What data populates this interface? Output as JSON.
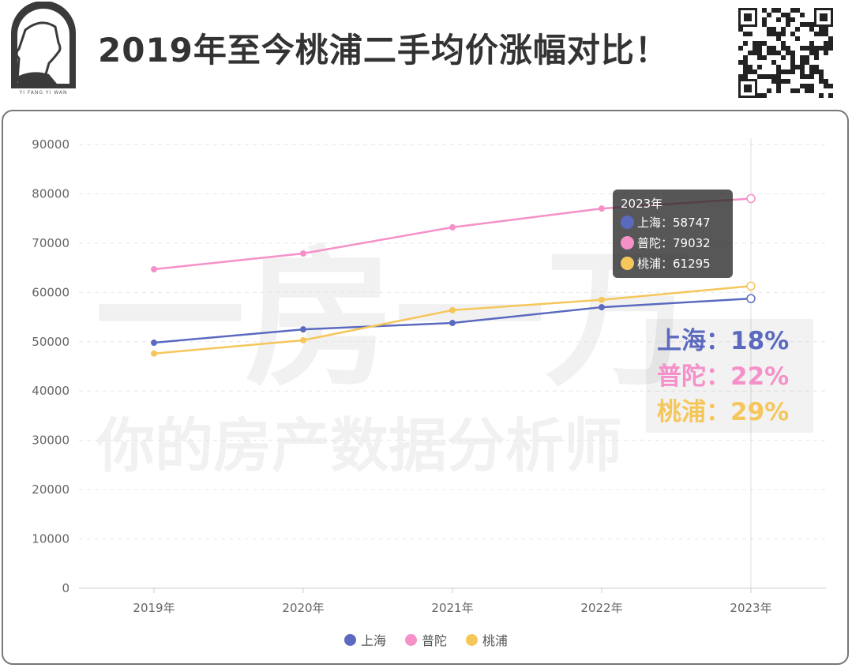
{
  "header": {
    "title": "2019年至今桃浦二手均价涨幅对比！",
    "logo_text": "YI FANG YI WAN"
  },
  "watermark": {
    "line1": "一房一万",
    "line2": "你的房产数据分析师"
  },
  "tooltip": {
    "title": "2023年",
    "rows": [
      {
        "label": "上海：58747",
        "color": "#5b6abf"
      },
      {
        "label": "普陀：79032",
        "color": "#f590c8"
      },
      {
        "label": "桃浦：61295",
        "color": "#f5c65a"
      }
    ]
  },
  "growth": [
    {
      "label": "上海：18%",
      "color": "#5b6abf"
    },
    {
      "label": "普陀：22%",
      "color": "#f590c8"
    },
    {
      "label": "桃浦：29%",
      "color": "#f5c65a"
    }
  ],
  "chart_data": {
    "type": "line",
    "categories": [
      "2019年",
      "2020年",
      "2021年",
      "2022年",
      "2023年"
    ],
    "ylim": [
      0,
      90000
    ],
    "yticks": [
      "0",
      "10000",
      "20000",
      "30000",
      "40000",
      "50000",
      "60000",
      "70000",
      "80000",
      "90000"
    ],
    "grid": true,
    "legend_placement": "bottom",
    "series": [
      {
        "name": "上海",
        "color": "#5b6abf",
        "values": [
          49800,
          52500,
          53800,
          57000,
          58747
        ]
      },
      {
        "name": "普陀",
        "color": "#f590c8",
        "values": [
          64700,
          67900,
          73200,
          77000,
          79032
        ]
      },
      {
        "name": "桃浦",
        "color": "#f5c65a",
        "values": [
          47600,
          50300,
          56400,
          58500,
          61295
        ]
      }
    ]
  }
}
